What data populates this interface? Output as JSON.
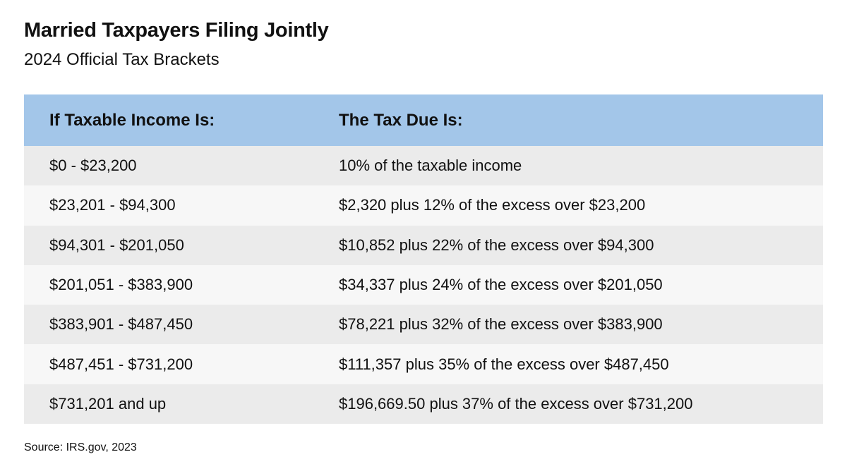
{
  "title": "Married Taxpayers Filing Jointly",
  "subtitle": "2024 Official Tax Brackets",
  "table": {
    "headers": {
      "income": "If Taxable Income Is:",
      "tax": "The Tax Due Is:"
    },
    "rows": [
      {
        "income": "$0 - $23,200",
        "tax": "10% of the taxable income"
      },
      {
        "income": "$23,201 - $94,300",
        "tax": "$2,320 plus 12% of the excess over $23,200"
      },
      {
        "income": "$94,301 - $201,050",
        "tax": "$10,852 plus 22% of the excess over $94,300"
      },
      {
        "income": "$201,051 - $383,900",
        "tax": "$34,337 plus 24% of the excess over $201,050"
      },
      {
        "income": "$383,901 - $487,450",
        "tax": "$78,221 plus 32% of the excess over $383,900"
      },
      {
        "income": "$487,451 - $731,200",
        "tax": "$111,357 plus 35% of the excess over $487,450"
      },
      {
        "income": "$731,201 and up",
        "tax": "$196,669.50 plus 37% of the excess over $731,200"
      }
    ]
  },
  "source": "Source: IRS.gov, 2023",
  "colors": {
    "header_bg": "#a3c6e9",
    "row_odd_bg": "#ebebeb",
    "row_even_bg": "#f7f7f7"
  }
}
